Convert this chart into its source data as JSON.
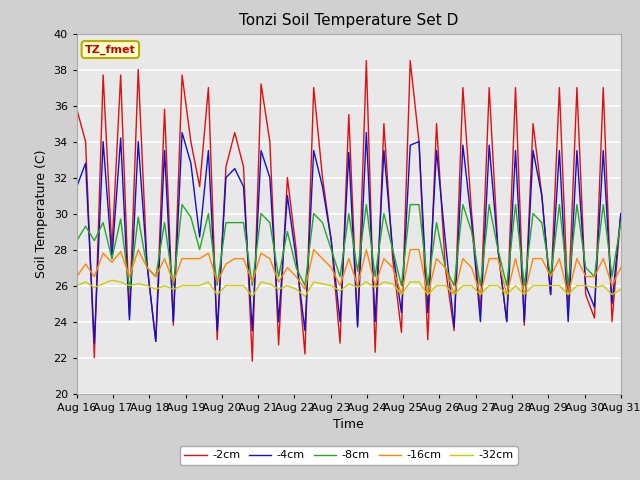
{
  "title": "Tonzi Soil Temperature Set D",
  "xlabel": "Time",
  "ylabel": "Soil Temperature (C)",
  "ylim": [
    20,
    40
  ],
  "annotation": "TZ_fmet",
  "fig_bg": "#d0d0d0",
  "ax_bg": "#e8e8e8",
  "grid_color": "white",
  "legend_labels": [
    "-2cm",
    "-4cm",
    "-8cm",
    "-16cm",
    "-32cm"
  ],
  "legend_colors": [
    "#dd1111",
    "#1111cc",
    "#22aa22",
    "#ff8800",
    "#cccc00"
  ],
  "x_tick_labels": [
    "Aug 16",
    "Aug 17",
    "Aug 18",
    "Aug 19",
    "Aug 20",
    "Aug 21",
    "Aug 22",
    "Aug 23",
    "Aug 24",
    "Aug 25",
    "Aug 26",
    "Aug 27",
    "Aug 28",
    "Aug 29",
    "Aug 30",
    "Aug 31"
  ],
  "series": {
    "neg2cm": [
      35.8,
      34.0,
      22.0,
      37.7,
      28.0,
      37.7,
      24.3,
      38.0,
      27.2,
      22.9,
      35.8,
      23.8,
      37.7,
      34.0,
      31.5,
      37.0,
      23.0,
      32.6,
      34.5,
      32.6,
      21.8,
      37.2,
      34.0,
      22.7,
      32.0,
      28.0,
      22.2,
      37.0,
      32.0,
      28.5,
      22.8,
      35.5,
      23.8,
      38.5,
      22.3,
      35.0,
      27.5,
      23.4,
      38.5,
      34.0,
      23.0,
      35.0,
      27.0,
      23.5,
      37.0,
      30.0,
      24.5,
      37.0,
      28.0,
      24.0,
      37.0,
      23.8,
      35.0,
      31.0,
      25.5,
      37.0,
      24.7,
      37.0,
      25.5,
      24.2,
      37.0,
      24.0,
      30.0
    ],
    "neg4cm": [
      31.5,
      32.8,
      22.8,
      34.0,
      27.5,
      34.2,
      24.1,
      34.0,
      27.2,
      22.9,
      33.5,
      24.0,
      34.5,
      32.8,
      28.7,
      33.5,
      23.5,
      32.0,
      32.5,
      31.5,
      23.5,
      33.5,
      32.0,
      24.0,
      31.0,
      27.5,
      23.5,
      33.5,
      31.5,
      28.5,
      24.0,
      33.4,
      23.7,
      34.5,
      24.0,
      33.5,
      28.0,
      24.5,
      33.8,
      34.0,
      24.5,
      33.5,
      28.5,
      23.7,
      33.8,
      29.5,
      24.0,
      33.8,
      28.0,
      24.0,
      33.5,
      24.0,
      33.5,
      31.0,
      25.5,
      33.5,
      24.0,
      33.5,
      26.0,
      24.8,
      33.5,
      25.0,
      30.0
    ],
    "neg8cm": [
      28.5,
      29.3,
      28.5,
      29.5,
      27.5,
      29.7,
      25.8,
      29.8,
      27.0,
      26.5,
      29.5,
      26.0,
      30.5,
      29.8,
      28.0,
      30.0,
      26.0,
      29.5,
      29.5,
      29.5,
      26.0,
      30.0,
      29.5,
      26.5,
      29.0,
      27.0,
      26.0,
      30.0,
      29.5,
      28.0,
      26.5,
      30.0,
      26.8,
      30.5,
      26.5,
      30.0,
      28.0,
      26.0,
      30.5,
      30.5,
      26.0,
      29.5,
      27.0,
      26.0,
      30.5,
      29.0,
      26.0,
      30.5,
      28.0,
      26.0,
      30.5,
      26.0,
      30.0,
      29.5,
      26.5,
      30.5,
      26.0,
      30.5,
      27.0,
      26.5,
      30.5,
      26.5,
      29.5
    ],
    "neg16cm": [
      26.5,
      27.2,
      26.5,
      27.8,
      27.3,
      27.9,
      26.5,
      28.0,
      27.0,
      26.5,
      27.5,
      26.2,
      27.5,
      27.5,
      27.5,
      27.8,
      26.2,
      27.2,
      27.5,
      27.5,
      26.2,
      27.8,
      27.5,
      26.2,
      27.0,
      26.5,
      25.8,
      28.0,
      27.5,
      27.0,
      26.0,
      27.5,
      26.0,
      28.0,
      26.0,
      27.5,
      27.0,
      25.5,
      28.0,
      28.0,
      25.5,
      27.5,
      27.0,
      25.5,
      27.5,
      27.0,
      25.5,
      27.5,
      27.5,
      25.5,
      27.5,
      25.5,
      27.5,
      27.5,
      26.5,
      27.5,
      25.5,
      27.5,
      26.5,
      26.5,
      27.5,
      26.0,
      27.0
    ],
    "neg32cm": [
      26.0,
      26.2,
      25.9,
      26.1,
      26.3,
      26.2,
      26.0,
      26.1,
      26.0,
      25.8,
      26.0,
      25.8,
      26.0,
      26.0,
      26.0,
      26.2,
      25.5,
      26.0,
      26.0,
      26.0,
      25.4,
      26.2,
      26.1,
      25.8,
      26.0,
      25.8,
      25.4,
      26.2,
      26.1,
      26.0,
      25.7,
      26.1,
      25.9,
      26.2,
      25.9,
      26.2,
      26.1,
      25.5,
      26.2,
      26.2,
      25.5,
      26.0,
      26.0,
      25.5,
      26.0,
      26.0,
      25.5,
      26.0,
      26.0,
      25.5,
      26.0,
      25.5,
      26.0,
      26.0,
      26.0,
      26.0,
      25.5,
      26.0,
      26.0,
      25.9,
      26.0,
      25.5,
      25.8
    ]
  }
}
